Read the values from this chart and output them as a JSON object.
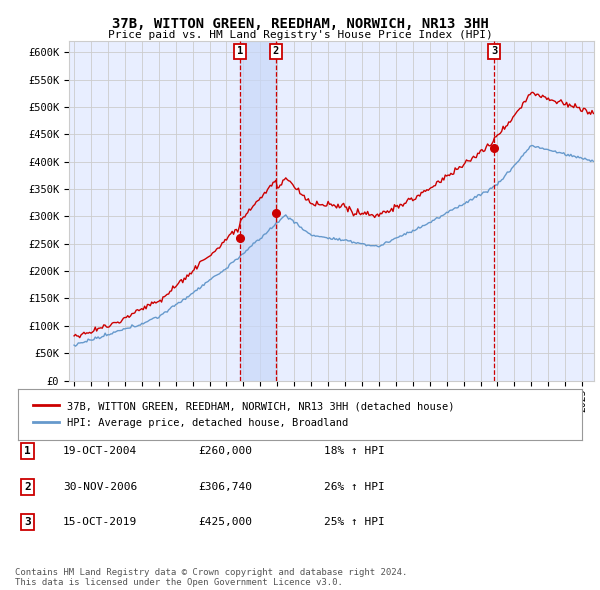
{
  "title": "37B, WITTON GREEN, REEDHAM, NORWICH, NR13 3HH",
  "subtitle": "Price paid vs. HM Land Registry's House Price Index (HPI)",
  "ylabel_ticks": [
    "£0",
    "£50K",
    "£100K",
    "£150K",
    "£200K",
    "£250K",
    "£300K",
    "£350K",
    "£400K",
    "£450K",
    "£500K",
    "£550K",
    "£600K"
  ],
  "ytick_values": [
    0,
    50000,
    100000,
    150000,
    200000,
    250000,
    300000,
    350000,
    400000,
    450000,
    500000,
    550000,
    600000
  ],
  "ylim": [
    0,
    620000
  ],
  "xlim_start": 1994.7,
  "xlim_end": 2025.7,
  "sale_markers": [
    {
      "year": 2004.8,
      "price": 260000,
      "label": "1"
    },
    {
      "year": 2006.92,
      "price": 306740,
      "label": "2"
    },
    {
      "year": 2019.8,
      "price": 425000,
      "label": "3"
    }
  ],
  "vline_color": "#cc0000",
  "vline_style": "--",
  "shade_between_1_2": true,
  "legend_entries": [
    {
      "label": "37B, WITTON GREEN, REEDHAM, NORWICH, NR13 3HH (detached house)",
      "color": "#cc0000"
    },
    {
      "label": "HPI: Average price, detached house, Broadland",
      "color": "#6699cc"
    }
  ],
  "table_rows": [
    {
      "num": "1",
      "date": "19-OCT-2004",
      "price": "£260,000",
      "pct": "18% ↑ HPI"
    },
    {
      "num": "2",
      "date": "30-NOV-2006",
      "price": "£306,740",
      "pct": "26% ↑ HPI"
    },
    {
      "num": "3",
      "date": "15-OCT-2019",
      "price": "£425,000",
      "pct": "25% ↑ HPI"
    }
  ],
  "footnote": "Contains HM Land Registry data © Crown copyright and database right 2024.\nThis data is licensed under the Open Government Licence v3.0.",
  "bg_color": "#ffffff",
  "grid_color": "#cccccc",
  "plot_bg_color": "#e8eeff"
}
